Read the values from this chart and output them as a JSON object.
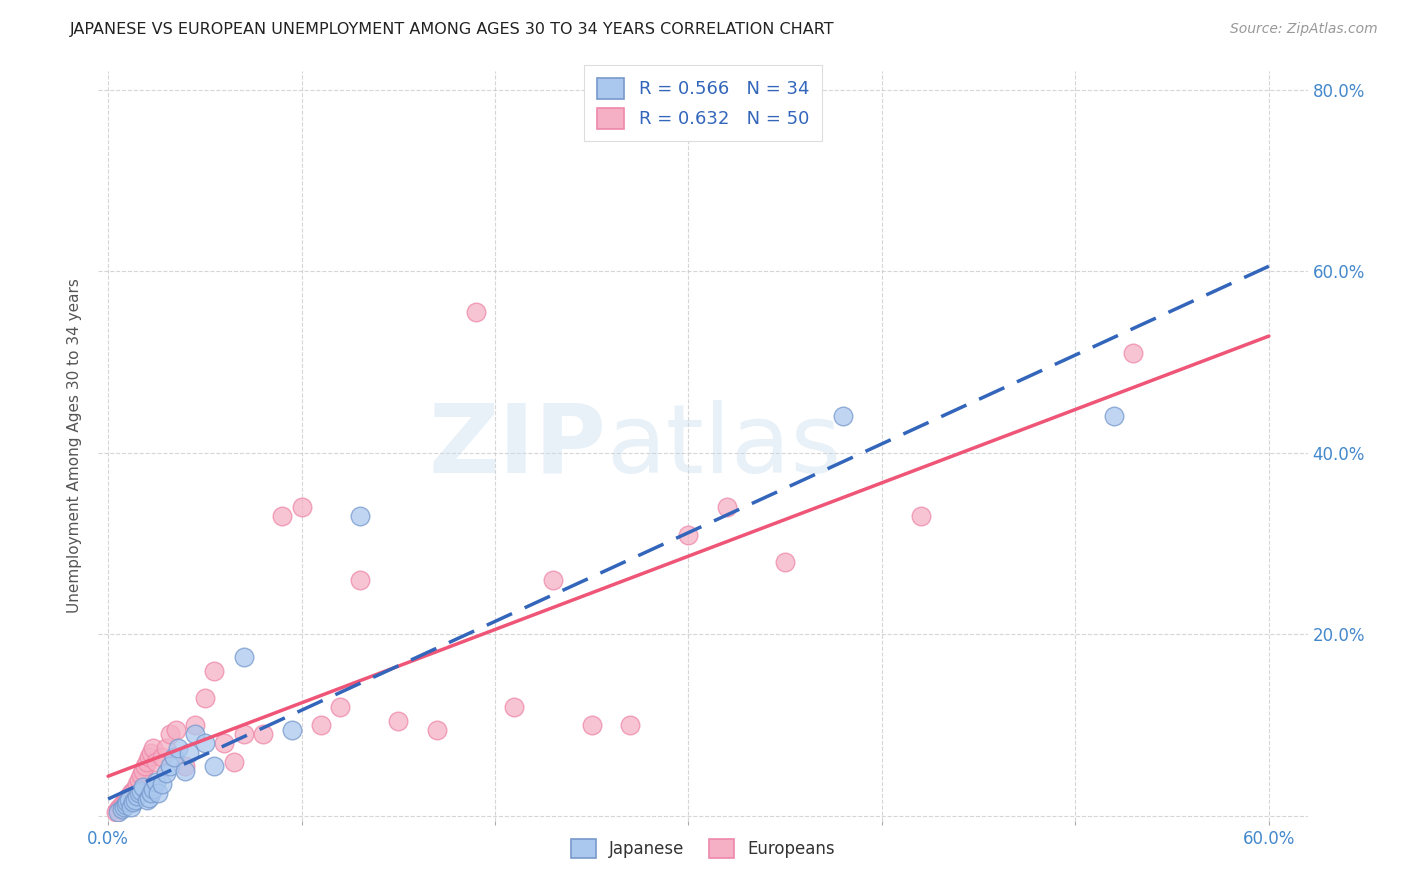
{
  "title": "JAPANESE VS EUROPEAN UNEMPLOYMENT AMONG AGES 30 TO 34 YEARS CORRELATION CHART",
  "source": "Source: ZipAtlas.com",
  "ylabel": "Unemployment Among Ages 30 to 34 years",
  "xlim": [
    -0.005,
    0.62
  ],
  "ylim": [
    -0.005,
    0.82
  ],
  "background_color": "#ffffff",
  "grid_color": "#cccccc",
  "japanese_color": "#aac8ee",
  "european_color": "#f5b0c5",
  "japanese_edge": "#7799cc",
  "european_edge": "#ee88aa",
  "japanese_line_color": "#3366bb",
  "european_line_color": "#ee5577",
  "japanese_R": 0.566,
  "japanese_N": 34,
  "european_R": 0.632,
  "european_N": 50,
  "legend_label_japanese": "Japanese",
  "legend_label_european": "Europeans",
  "right_yticks": [
    0.0,
    0.2,
    0.4,
    0.6,
    0.8
  ],
  "right_ytick_labels": [
    "",
    "20.0%",
    "40.0%",
    "60.0%",
    "80.0%"
  ],
  "japanese_x": [
    0.005,
    0.007,
    0.008,
    0.009,
    0.01,
    0.011,
    0.012,
    0.013,
    0.014,
    0.015,
    0.016,
    0.017,
    0.018,
    0.02,
    0.021,
    0.022,
    0.023,
    0.025,
    0.026,
    0.028,
    0.03,
    0.032,
    0.034,
    0.036,
    0.04,
    0.042,
    0.045,
    0.05,
    0.055,
    0.07,
    0.095,
    0.13,
    0.38,
    0.52
  ],
  "japanese_y": [
    0.005,
    0.008,
    0.01,
    0.012,
    0.015,
    0.018,
    0.01,
    0.015,
    0.018,
    0.022,
    0.025,
    0.028,
    0.032,
    0.018,
    0.02,
    0.025,
    0.03,
    0.038,
    0.025,
    0.035,
    0.048,
    0.055,
    0.065,
    0.075,
    0.05,
    0.07,
    0.09,
    0.08,
    0.055,
    0.175,
    0.095,
    0.33,
    0.44,
    0.44
  ],
  "european_x": [
    0.004,
    0.005,
    0.006,
    0.007,
    0.008,
    0.009,
    0.01,
    0.011,
    0.012,
    0.013,
    0.014,
    0.015,
    0.016,
    0.017,
    0.018,
    0.019,
    0.02,
    0.021,
    0.022,
    0.023,
    0.025,
    0.028,
    0.03,
    0.032,
    0.035,
    0.04,
    0.045,
    0.05,
    0.055,
    0.06,
    0.065,
    0.07,
    0.08,
    0.09,
    0.1,
    0.11,
    0.12,
    0.13,
    0.15,
    0.17,
    0.19,
    0.21,
    0.23,
    0.25,
    0.27,
    0.3,
    0.32,
    0.35,
    0.42,
    0.53
  ],
  "european_y": [
    0.005,
    0.008,
    0.01,
    0.012,
    0.015,
    0.018,
    0.02,
    0.022,
    0.025,
    0.028,
    0.03,
    0.035,
    0.04,
    0.045,
    0.05,
    0.055,
    0.06,
    0.065,
    0.07,
    0.075,
    0.06,
    0.065,
    0.075,
    0.09,
    0.095,
    0.055,
    0.1,
    0.13,
    0.16,
    0.08,
    0.06,
    0.09,
    0.09,
    0.33,
    0.34,
    0.1,
    0.12,
    0.26,
    0.105,
    0.095,
    0.555,
    0.12,
    0.26,
    0.1,
    0.1,
    0.31,
    0.34,
    0.28,
    0.33,
    0.51
  ]
}
